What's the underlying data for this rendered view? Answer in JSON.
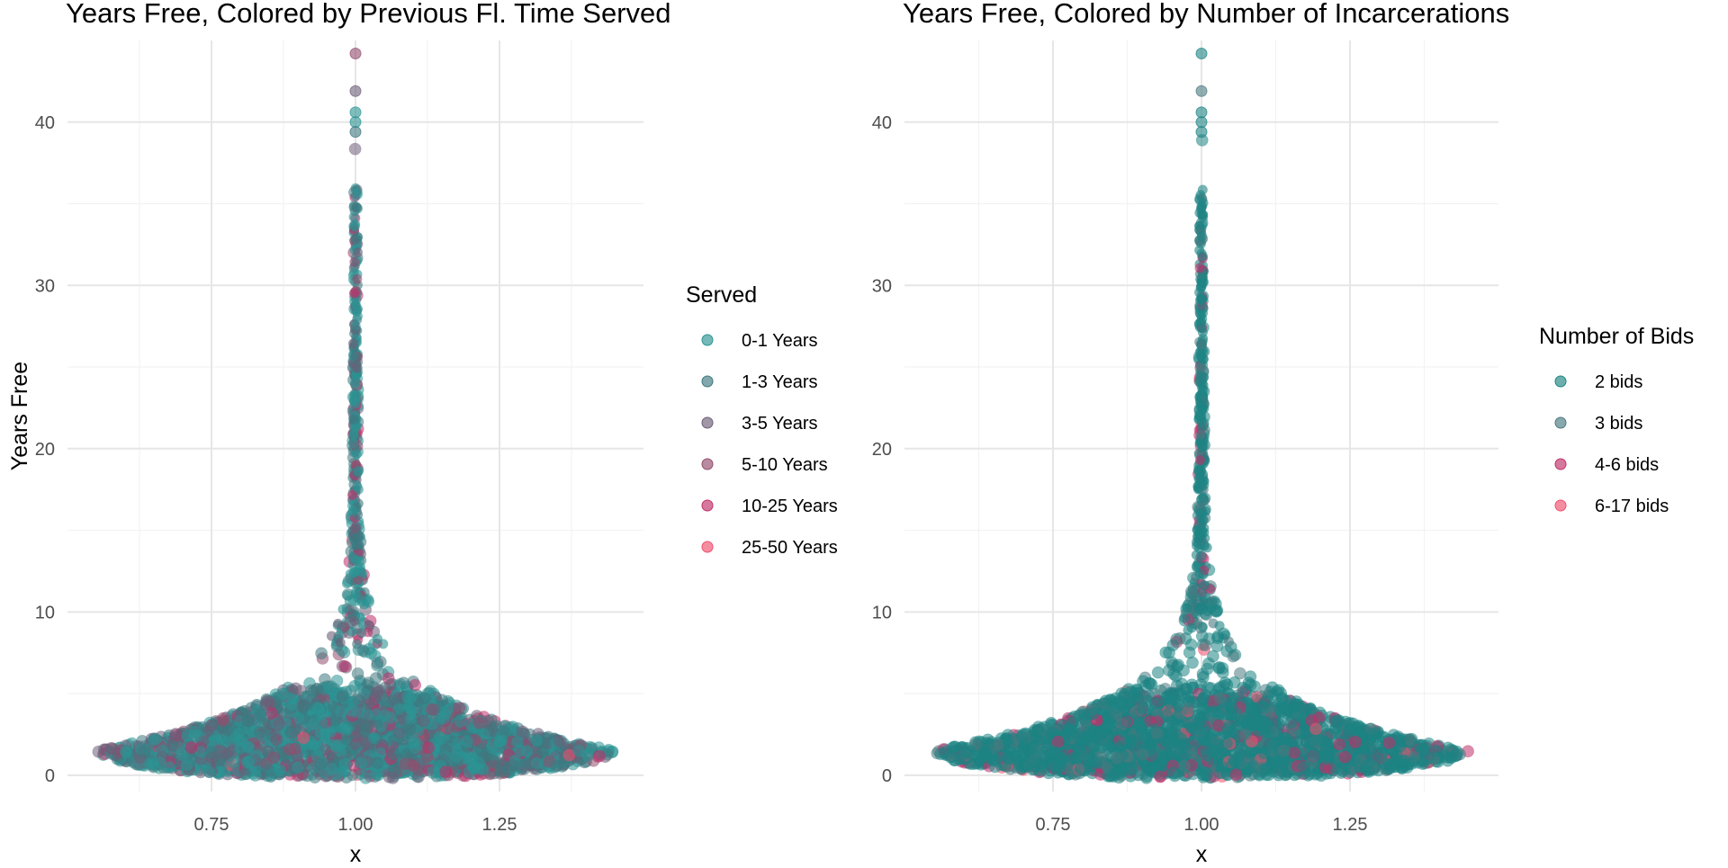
{
  "chart_data": [
    {
      "type": "scatter",
      "title": "Years Free, Colored by Previous Fl. Time Served",
      "xlabel": "x",
      "ylabel": "Years Free",
      "xlim": [
        0.5,
        1.5
      ],
      "ylim": [
        -1,
        45
      ],
      "x_ticks": [
        0.75,
        1.0,
        1.25
      ],
      "x_tick_labels": [
        "0.75",
        "1.00",
        "1.25"
      ],
      "y_ticks": [
        0,
        10,
        20,
        30,
        40
      ],
      "y_tick_labels": [
        "0",
        "10",
        "20",
        "30",
        "40"
      ],
      "grid": true,
      "legend": {
        "title": "Served",
        "position": "right",
        "entries": [
          {
            "label": "0-1 Years",
            "color": "#2b9393"
          },
          {
            "label": "1-3 Years",
            "color": "#3f7880"
          },
          {
            "label": "3-5 Years",
            "color": "#6e5f78"
          },
          {
            "label": "5-10 Years",
            "color": "#944d6e"
          },
          {
            "label": "10-25 Years",
            "color": "#c0306a"
          },
          {
            "label": "25-50 Years",
            "color": "#f0506e"
          }
        ]
      },
      "series_weights": [
        0.42,
        0.3,
        0.12,
        0.09,
        0.06,
        0.01
      ],
      "shape": {
        "center_x": 1.0,
        "half_width_max": 0.45,
        "y_mode": 1.5,
        "y_max": 44.2
      },
      "top_points": [
        {
          "x": 1.0,
          "y": 44.2,
          "series": 3
        },
        {
          "x": 1.0,
          "y": 41.9,
          "series": 2
        },
        {
          "x": 1.0,
          "y": 40.6,
          "series": 0
        },
        {
          "x": 1.0,
          "y": 40.0,
          "series": 0
        },
        {
          "x": 1.0,
          "y": 39.4,
          "series": 1
        }
      ]
    },
    {
      "type": "scatter",
      "title": "Years Free, Colored by Number of Incarcerations",
      "xlabel": "x",
      "ylabel": "",
      "xlim": [
        0.5,
        1.5
      ],
      "ylim": [
        -1,
        45
      ],
      "x_ticks": [
        0.75,
        1.0,
        1.25
      ],
      "x_tick_labels": [
        "0.75",
        "1.00",
        "1.25"
      ],
      "y_ticks": [
        0,
        10,
        20,
        30,
        40
      ],
      "y_tick_labels": [
        "0",
        "10",
        "20",
        "30",
        "40"
      ],
      "grid": true,
      "legend": {
        "title": "Number of Bids",
        "position": "right",
        "entries": [
          {
            "label": "2 bids",
            "color": "#1e8484"
          },
          {
            "label": "3 bids",
            "color": "#4a7a80"
          },
          {
            "label": "4-6 bids",
            "color": "#c0306a"
          },
          {
            "label": "6-17 bids",
            "color": "#f0506e"
          }
        ]
      },
      "series_weights": [
        0.78,
        0.12,
        0.08,
        0.02
      ],
      "shape": {
        "center_x": 1.0,
        "half_width_max": 0.45,
        "y_mode": 1.5,
        "y_max": 44.2
      },
      "top_points": [
        {
          "x": 1.0,
          "y": 44.2,
          "series": 0
        },
        {
          "x": 1.0,
          "y": 41.9,
          "series": 1
        },
        {
          "x": 1.0,
          "y": 40.6,
          "series": 0
        },
        {
          "x": 1.0,
          "y": 40.0,
          "series": 0
        },
        {
          "x": 1.0,
          "y": 39.4,
          "series": 0
        }
      ]
    }
  ]
}
